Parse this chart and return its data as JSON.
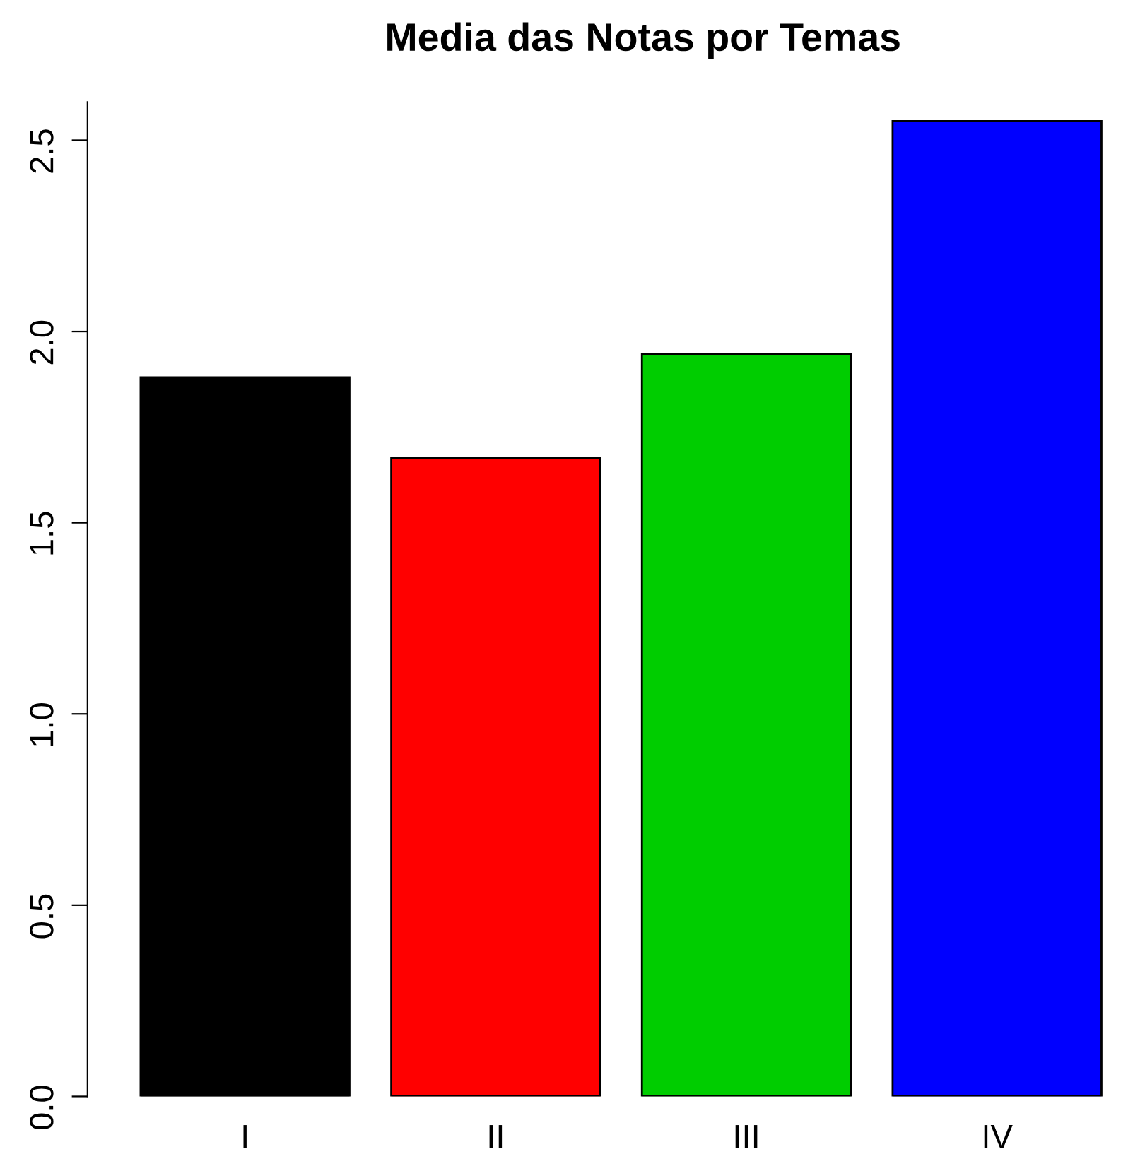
{
  "chart_data": {
    "type": "bar",
    "title": "Media das Notas por Temas",
    "categories": [
      "I",
      "II",
      "III",
      "IV"
    ],
    "values": [
      1.88,
      1.67,
      1.94,
      2.55
    ],
    "colors": [
      "#000000",
      "#ff0000",
      "#00cd00",
      "#0000ff"
    ],
    "ylim": [
      0,
      2.6
    ],
    "yticks": [
      {
        "value": 0,
        "label": "0.0"
      },
      0.5,
      {
        "value": 1,
        "label": "1.0"
      },
      1.5,
      {
        "value": 2,
        "label": "2.0"
      },
      2.5
    ],
    "grid": false
  }
}
